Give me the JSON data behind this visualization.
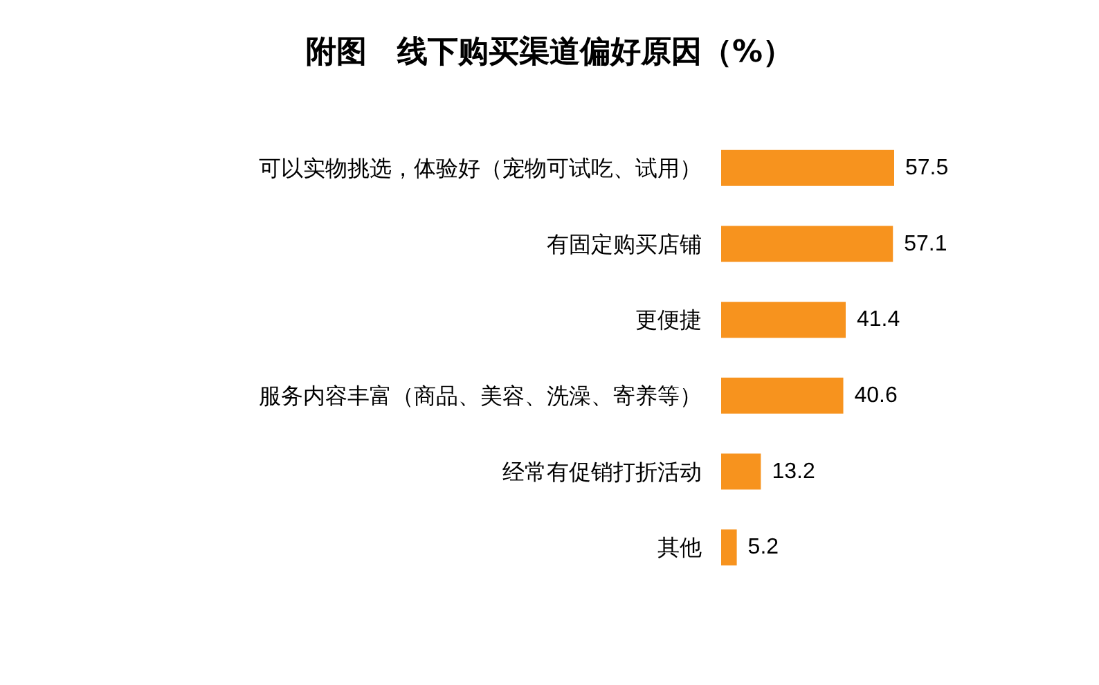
{
  "chart_data": {
    "type": "bar",
    "orientation": "horizontal",
    "title": "附图　线下购买渠道偏好原因（%）",
    "categories": [
      "可以实物挑选，体验好（宠物可试吃、试用）",
      "有固定购买店铺",
      "更便捷",
      "服务内容丰富（商品、美容、洗澡、寄养等）",
      "经常有促销打折活动",
      "其他"
    ],
    "values": [
      57.5,
      57.1,
      41.4,
      40.6,
      13.2,
      5.2
    ],
    "color": "#f7931e",
    "data_labels": true
  }
}
